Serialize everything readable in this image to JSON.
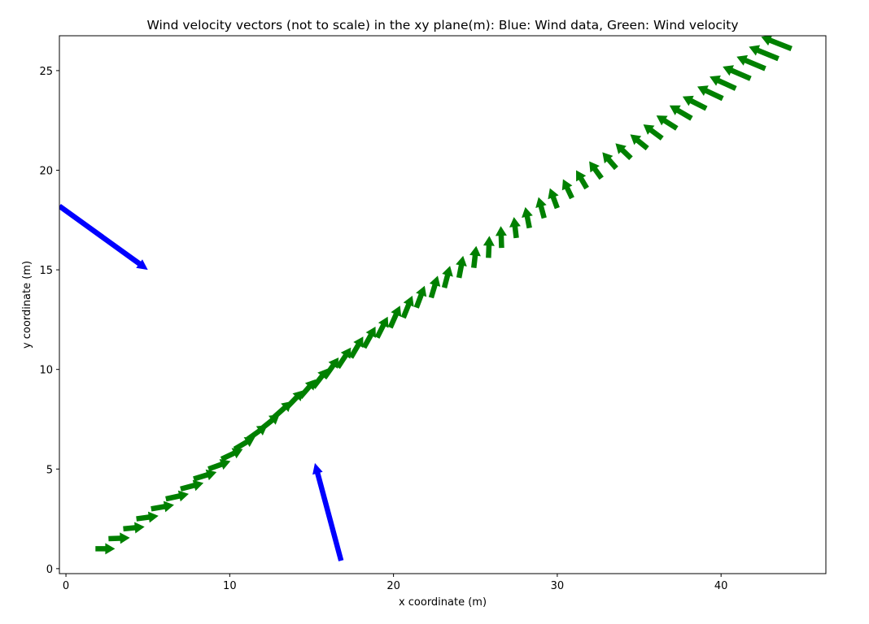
{
  "chart_data": {
    "type": "quiver",
    "title": "Wind velocity vectors (not to scale) in the xy plane(m): Blue: Wind data, Green: Wind velocity",
    "xlabel": "x coordinate (m)",
    "ylabel": "y coordinate (m)",
    "xlim": [
      -0.4,
      46.4
    ],
    "ylim": [
      -0.25,
      26.75
    ],
    "xticks": [
      0,
      10,
      20,
      30,
      40
    ],
    "yticks": [
      0,
      5,
      10,
      15,
      20,
      25
    ],
    "grid": false,
    "series": [
      {
        "name": "Wind data",
        "color": "#0000ff",
        "vectors": [
          {
            "x": -0.4,
            "y": 18.2,
            "u": 5.4,
            "v": -3.2
          },
          {
            "x": 16.8,
            "y": 0.4,
            "u": -1.6,
            "v": 4.9
          }
        ]
      },
      {
        "name": "Wind velocity",
        "color": "#008000",
        "vectors": [
          {
            "x": 1.8,
            "y": 1.0,
            "u": 1.2,
            "v": 0.0
          },
          {
            "x": 2.6,
            "y": 1.5,
            "u": 1.3,
            "v": 0.05
          },
          {
            "x": 3.5,
            "y": 2.0,
            "u": 1.3,
            "v": 0.1
          },
          {
            "x": 4.3,
            "y": 2.5,
            "u": 1.35,
            "v": 0.15
          },
          {
            "x": 5.2,
            "y": 3.0,
            "u": 1.4,
            "v": 0.2
          },
          {
            "x": 6.1,
            "y": 3.5,
            "u": 1.4,
            "v": 0.25
          },
          {
            "x": 7.0,
            "y": 4.0,
            "u": 1.4,
            "v": 0.3
          },
          {
            "x": 7.8,
            "y": 4.5,
            "u": 1.4,
            "v": 0.35
          },
          {
            "x": 8.7,
            "y": 5.0,
            "u": 1.35,
            "v": 0.4
          },
          {
            "x": 9.5,
            "y": 5.5,
            "u": 1.3,
            "v": 0.5
          },
          {
            "x": 10.3,
            "y": 6.0,
            "u": 1.25,
            "v": 0.6
          },
          {
            "x": 11.1,
            "y": 6.5,
            "u": 1.2,
            "v": 0.7
          },
          {
            "x": 11.9,
            "y": 7.0,
            "u": 1.15,
            "v": 0.75
          },
          {
            "x": 12.7,
            "y": 7.6,
            "u": 1.1,
            "v": 0.8
          },
          {
            "x": 13.5,
            "y": 8.1,
            "u": 1.0,
            "v": 0.85
          },
          {
            "x": 14.3,
            "y": 8.6,
            "u": 0.95,
            "v": 0.9
          },
          {
            "x": 15.1,
            "y": 9.1,
            "u": 0.9,
            "v": 0.95
          },
          {
            "x": 15.8,
            "y": 9.6,
            "u": 0.85,
            "v": 1.0
          },
          {
            "x": 16.6,
            "y": 10.1,
            "u": 0.8,
            "v": 1.0
          },
          {
            "x": 17.4,
            "y": 10.6,
            "u": 0.75,
            "v": 1.05
          },
          {
            "x": 18.2,
            "y": 11.1,
            "u": 0.7,
            "v": 1.05
          },
          {
            "x": 19.0,
            "y": 11.6,
            "u": 0.65,
            "v": 1.05
          },
          {
            "x": 19.8,
            "y": 12.1,
            "u": 0.6,
            "v": 1.1
          },
          {
            "x": 20.6,
            "y": 12.6,
            "u": 0.55,
            "v": 1.1
          },
          {
            "x": 21.4,
            "y": 13.1,
            "u": 0.5,
            "v": 1.1
          },
          {
            "x": 22.3,
            "y": 13.6,
            "u": 0.4,
            "v": 1.1
          },
          {
            "x": 23.1,
            "y": 14.1,
            "u": 0.35,
            "v": 1.1
          },
          {
            "x": 24.0,
            "y": 14.6,
            "u": 0.25,
            "v": 1.1
          },
          {
            "x": 24.9,
            "y": 15.1,
            "u": 0.15,
            "v": 1.1
          },
          {
            "x": 25.8,
            "y": 15.6,
            "u": 0.05,
            "v": 1.1
          },
          {
            "x": 26.6,
            "y": 16.1,
            "u": -0.05,
            "v": 1.1
          },
          {
            "x": 27.5,
            "y": 16.6,
            "u": -0.15,
            "v": 1.05
          },
          {
            "x": 28.3,
            "y": 17.1,
            "u": -0.25,
            "v": 1.05
          },
          {
            "x": 29.2,
            "y": 17.6,
            "u": -0.35,
            "v": 1.05
          },
          {
            "x": 30.0,
            "y": 18.1,
            "u": -0.45,
            "v": 1.0
          },
          {
            "x": 30.9,
            "y": 18.6,
            "u": -0.55,
            "v": 0.95
          },
          {
            "x": 31.8,
            "y": 19.1,
            "u": -0.65,
            "v": 0.9
          },
          {
            "x": 32.7,
            "y": 19.6,
            "u": -0.75,
            "v": 0.85
          },
          {
            "x": 33.6,
            "y": 20.1,
            "u": -0.85,
            "v": 0.8
          },
          {
            "x": 34.5,
            "y": 20.6,
            "u": -0.95,
            "v": 0.75
          },
          {
            "x": 35.5,
            "y": 21.1,
            "u": -1.05,
            "v": 0.7
          },
          {
            "x": 36.4,
            "y": 21.6,
            "u": -1.15,
            "v": 0.7
          },
          {
            "x": 37.3,
            "y": 22.1,
            "u": -1.25,
            "v": 0.65
          },
          {
            "x": 38.2,
            "y": 22.6,
            "u": -1.35,
            "v": 0.65
          },
          {
            "x": 39.1,
            "y": 23.1,
            "u": -1.45,
            "v": 0.6
          },
          {
            "x": 40.1,
            "y": 23.6,
            "u": -1.55,
            "v": 0.6
          },
          {
            "x": 40.9,
            "y": 24.1,
            "u": -1.6,
            "v": 0.6
          },
          {
            "x": 41.8,
            "y": 24.6,
            "u": -1.7,
            "v": 0.6
          },
          {
            "x": 42.7,
            "y": 25.1,
            "u": -1.75,
            "v": 0.6
          },
          {
            "x": 43.5,
            "y": 25.6,
            "u": -1.8,
            "v": 0.6
          },
          {
            "x": 44.3,
            "y": 26.1,
            "u": -1.85,
            "v": 0.6
          }
        ]
      }
    ]
  }
}
